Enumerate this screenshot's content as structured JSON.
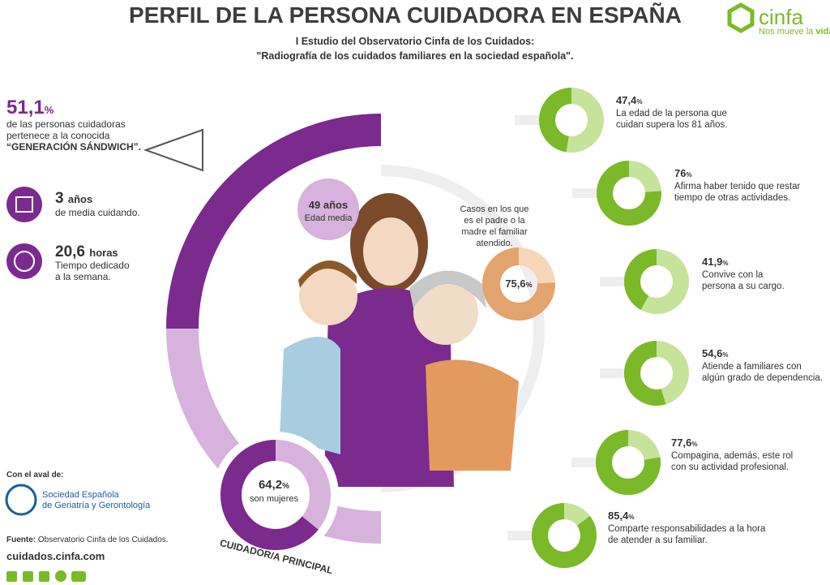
{
  "header": {
    "title": "PERFIL DE LA PERSONA CUIDADORA EN ESPAÑA",
    "subtitle_lines": [
      "I Estudio del Observatorio Cinfa de los Cuidados:",
      "\"Radiografía de los cuidados familiares en la sociedad española\"."
    ]
  },
  "brand": {
    "name": "cinfa",
    "tagline_prefix": "Nos mueve la",
    "tagline_emphasis": "vida"
  },
  "left_stats": [
    {
      "value": 51.1,
      "label": "51,1",
      "unit": "%",
      "lines": [
        "de las personas cuidadoras",
        "pertenece a la conocida"
      ],
      "emphasis": "“GENERACIÓN SÁNDWICH”."
    },
    {
      "value": 3,
      "label": "3",
      "unit": "años",
      "lines": [
        "de media cuidando."
      ]
    },
    {
      "value": 20.6,
      "label": "20,6",
      "unit": "horas",
      "lines": [
        "Tiempo dedicado",
        "a la semana."
      ]
    }
  ],
  "age": {
    "value": 49,
    "label": "49",
    "unit": "años",
    "caption": "Edad media"
  },
  "parents": {
    "lines": [
      "Casos en los que",
      "es el padre o la",
      "madre el familiar",
      "atendido."
    ],
    "value": 75.6,
    "label": "75,6",
    "unit": "%"
  },
  "women": {
    "value": 64.2,
    "label": "64,2",
    "unit": "%",
    "caption": "son mujeres"
  },
  "arc_label": "CUIDADOR/A PRINCIPAL",
  "right_stats": [
    {
      "value": 47.4,
      "label": "47,4",
      "unit": "%",
      "lines": [
        "La edad de la persona que",
        "cuidan supera los 81 años."
      ]
    },
    {
      "value": 76,
      "label": "76",
      "unit": "%",
      "lines": [
        "Afirma haber tenido que restar",
        "tiempo de otras actividades."
      ]
    },
    {
      "value": 41.9,
      "label": "41,9",
      "unit": "%",
      "lines": [
        "Convive con la",
        "persona a su cargo."
      ]
    },
    {
      "value": 54.6,
      "label": "54,6",
      "unit": "%",
      "lines": [
        "Atiende a familiares con",
        "algún grado de dependencia."
      ]
    },
    {
      "value": 77.6,
      "label": "77,6",
      "unit": "%",
      "lines": [
        "Compagina, además, este rol",
        "con su actividad profesional."
      ]
    },
    {
      "value": 85.4,
      "label": "85,4",
      "unit": "%",
      "lines": [
        "Comparte responsabilidades a la hora",
        "de atender a su familiar."
      ]
    }
  ],
  "endorsement": {
    "heading": "Con el aval de:",
    "org_lines": [
      "Sociedad Española",
      "de Geriatría y Gerontología"
    ]
  },
  "footer": {
    "source_label": "Fuente:",
    "source": " Observatorio Cinfa de los Cuidados.",
    "url": "cuidados.cinfa.com"
  }
}
